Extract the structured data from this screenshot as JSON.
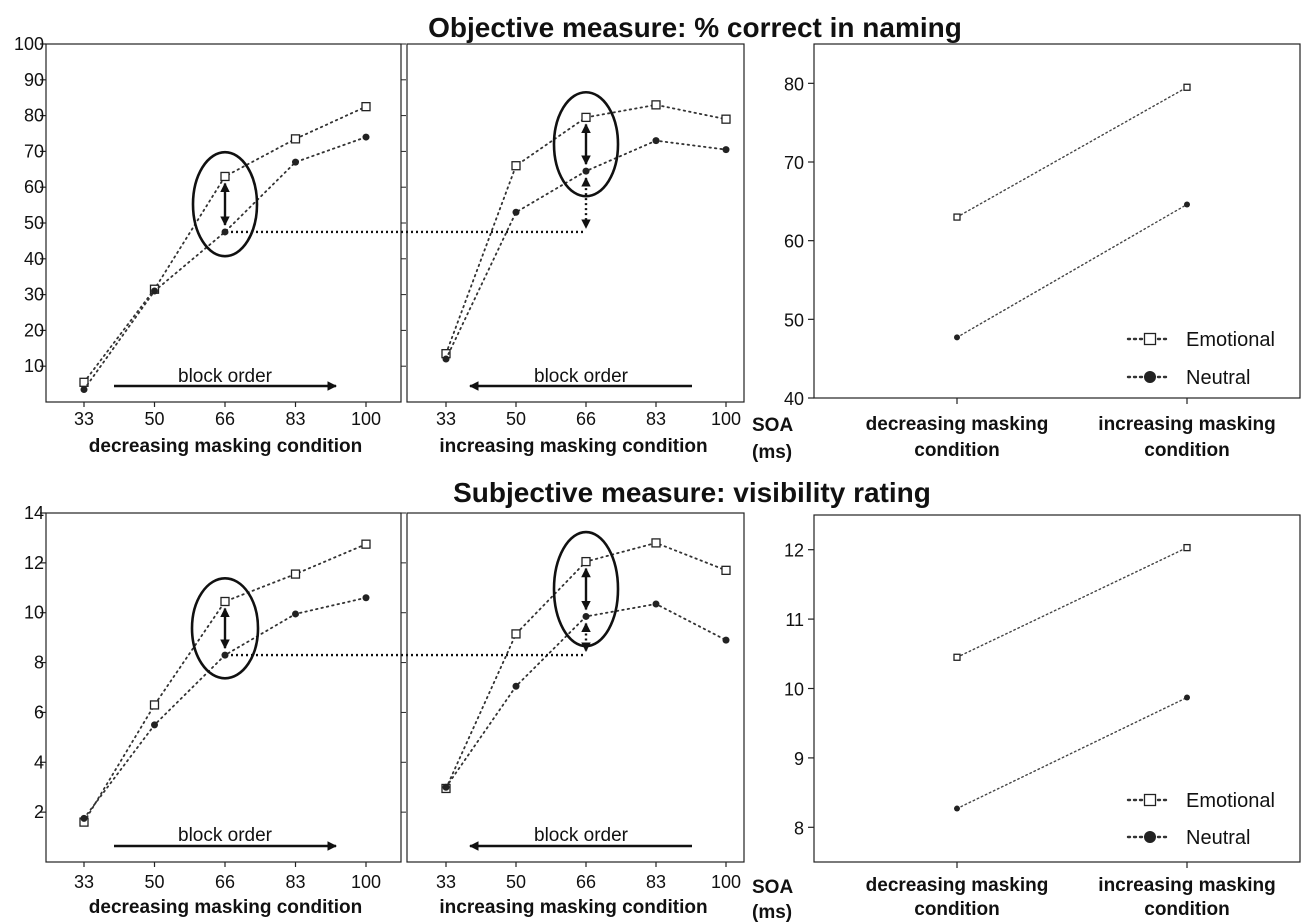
{
  "sections": [
    {
      "title": "Objective measure: % correct in naming"
    },
    {
      "title": "Subjective measure: visibility rating"
    }
  ],
  "soa_label": "SOA",
  "soa_unit": "(ms)",
  "block_order_label": "block order",
  "legend": {
    "emotional": "Emotional",
    "neutral": "Neutral"
  },
  "chart_data": [
    {
      "type": "line",
      "title": "Objective measure: % correct in naming",
      "panel": "decreasing masking condition",
      "xlabel": "decreasing masking condition",
      "x": [
        33,
        50,
        66,
        83,
        100
      ],
      "ylim": [
        0,
        100
      ],
      "yticks": [
        10,
        20,
        30,
        40,
        50,
        60,
        70,
        80,
        90,
        100
      ],
      "block_order_arrow": "right",
      "series": [
        {
          "name": "Emotional",
          "values": [
            5.5,
            31.5,
            63,
            73.5,
            82.5
          ]
        },
        {
          "name": "Neutral",
          "values": [
            3.5,
            31,
            47.5,
            67,
            74
          ]
        }
      ]
    },
    {
      "type": "line",
      "title": "Objective measure: % correct in naming",
      "panel": "increasing masking condition",
      "xlabel": "increasing masking condition",
      "x": [
        33,
        50,
        66,
        83,
        100
      ],
      "ylim": [
        0,
        100
      ],
      "block_order_arrow": "left",
      "series": [
        {
          "name": "Emotional",
          "values": [
            13.5,
            66,
            79.5,
            83,
            79
          ]
        },
        {
          "name": "Neutral",
          "values": [
            12,
            53,
            64.5,
            73,
            70.5
          ]
        }
      ]
    },
    {
      "type": "line",
      "title": "Objective measure: % correct in naming",
      "panel": "summary",
      "categories": [
        "decreasing masking condition",
        "increasing masking condition"
      ],
      "ylim": [
        40,
        85
      ],
      "yticks": [
        40,
        50,
        60,
        70,
        80
      ],
      "legend_position": "bottom-right",
      "series": [
        {
          "name": "Emotional",
          "values": [
            63,
            79.5
          ]
        },
        {
          "name": "Neutral",
          "values": [
            47.7,
            64.6
          ]
        }
      ]
    },
    {
      "type": "line",
      "title": "Subjective measure: visibility rating",
      "panel": "decreasing masking condition",
      "xlabel": "decreasing masking condition",
      "x": [
        33,
        50,
        66,
        83,
        100
      ],
      "ylim": [
        0,
        14
      ],
      "yticks": [
        2,
        4,
        6,
        8,
        10,
        12,
        14
      ],
      "block_order_arrow": "right",
      "series": [
        {
          "name": "Emotional",
          "values": [
            1.6,
            6.3,
            10.45,
            11.55,
            12.75
          ]
        },
        {
          "name": "Neutral",
          "values": [
            1.75,
            5.5,
            8.3,
            9.95,
            10.6
          ]
        }
      ]
    },
    {
      "type": "line",
      "title": "Subjective measure: visibility rating",
      "panel": "increasing masking condition",
      "xlabel": "increasing masking condition",
      "x": [
        33,
        50,
        66,
        83,
        100
      ],
      "ylim": [
        0,
        14
      ],
      "block_order_arrow": "left",
      "series": [
        {
          "name": "Emotional",
          "values": [
            2.95,
            9.15,
            12.05,
            12.8,
            11.7
          ]
        },
        {
          "name": "Neutral",
          "values": [
            3.0,
            7.05,
            9.85,
            10.35,
            8.9
          ]
        }
      ]
    },
    {
      "type": "line",
      "title": "Subjective measure: visibility rating",
      "panel": "summary",
      "categories": [
        "decreasing masking condition",
        "increasing masking condition"
      ],
      "ylim": [
        7.5,
        12.5
      ],
      "yticks": [
        8,
        9,
        10,
        11,
        12
      ],
      "legend_position": "bottom-right",
      "series": [
        {
          "name": "Emotional",
          "values": [
            10.45,
            12.03
          ]
        },
        {
          "name": "Neutral",
          "values": [
            8.27,
            9.87
          ]
        }
      ]
    }
  ]
}
